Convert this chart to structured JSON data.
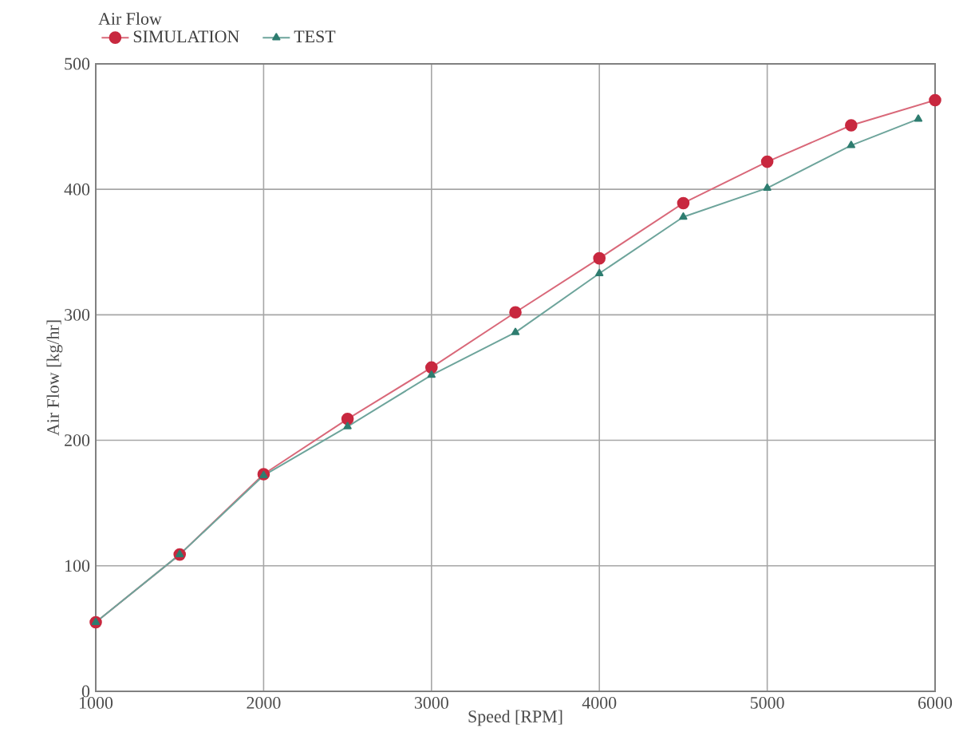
{
  "chart_data": {
    "type": "line",
    "legend_title": "Air Flow",
    "xlabel": "Speed [RPM]",
    "ylabel": "Air Flow [kg/hr]",
    "xlim": [
      1000,
      6000
    ],
    "xticks": [
      1000,
      2000,
      3000,
      4000,
      5000,
      6000
    ],
    "ylim": [
      0,
      500
    ],
    "yticks": [
      0,
      100,
      200,
      300,
      400,
      500
    ],
    "grid": true,
    "legend": "top left",
    "series": [
      {
        "name": "SIMULATION",
        "color": "#c8283f",
        "marker": "circle",
        "x": [
          1000,
          1500,
          2000,
          2500,
          3000,
          3500,
          4000,
          4500,
          5000,
          5500,
          6000
        ],
        "values": [
          55,
          109,
          173,
          217,
          258,
          302,
          345,
          389,
          422,
          451,
          471
        ]
      },
      {
        "name": "TEST",
        "color": "#2e7d70",
        "marker": "triangle",
        "x": [
          1000,
          1500,
          2000,
          2500,
          3000,
          3500,
          4000,
          4500,
          5000,
          5500,
          5900
        ],
        "values": [
          55,
          109,
          172,
          211,
          252,
          286,
          333,
          378,
          401,
          435,
          456
        ]
      }
    ]
  }
}
